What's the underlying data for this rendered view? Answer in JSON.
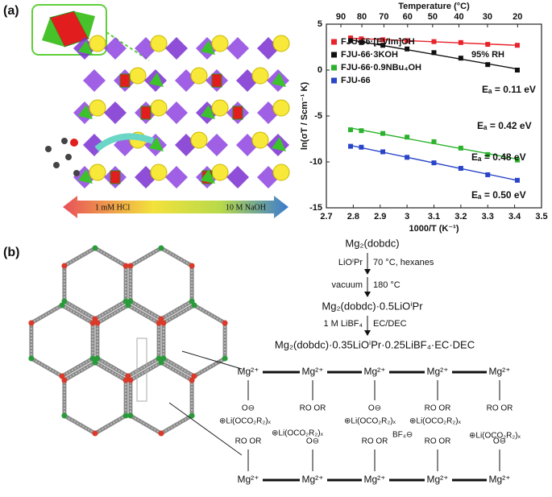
{
  "panel_labels": [
    "(a)",
    "(b)"
  ],
  "panel_a": {
    "ph_left": "1 mM HCl",
    "ph_right": "10 M NaOH"
  },
  "chart_data": {
    "type": "scatter",
    "x_label": "1000/T (K⁻¹)",
    "y_label": "ln(σT / Scm⁻¹ K)",
    "x2_label": "Temperature (°C)",
    "annotation": "95% RH",
    "x": [
      2.79,
      2.83,
      2.91,
      3.0,
      3.1,
      3.2,
      3.3,
      3.41
    ],
    "series": [
      {
        "name": "FJU-66·[EVIm]OH",
        "color": "#e8232a",
        "values": [
          3.5,
          3.4,
          3.3,
          3.2,
          3.1,
          3.0,
          2.8,
          2.7
        ],
        "label": "Eₐ = 0.11 eV"
      },
      {
        "name": "FJU-66·3KOH",
        "color": "#111111",
        "values": [
          3.2,
          3.0,
          2.7,
          2.3,
          1.9,
          1.3,
          0.6,
          0.0
        ],
        "label": "Eₐ = 0.42 eV"
      },
      {
        "name": "FJU-66·0.9NBu₄OH",
        "color": "#2db22d",
        "values": [
          -6.5,
          -6.6,
          -6.9,
          -7.3,
          -7.8,
          -8.5,
          -9.2,
          -9.8
        ],
        "label": "Eₐ = 0.48 eV"
      },
      {
        "name": "FJU-66",
        "color": "#2a45c8",
        "values": [
          -8.3,
          -8.4,
          -8.9,
          -9.5,
          -10.1,
          -10.7,
          -11.4,
          -12.0
        ],
        "label": "Eₐ = 0.50 eV"
      }
    ],
    "xlim": [
      2.7,
      3.5
    ],
    "xticks": [
      2.7,
      2.8,
      2.9,
      3,
      3.1,
      3.2,
      3.3,
      3.4,
      3.5
    ],
    "ylim": [
      -15,
      5
    ],
    "yticks": [
      -15,
      -10,
      -5,
      0,
      5
    ],
    "x2ticks": [
      {
        "value": 2.754,
        "label": "90"
      },
      {
        "value": 2.832,
        "label": "80"
      },
      {
        "value": 2.914,
        "label": "70"
      },
      {
        "value": 3.002,
        "label": "60"
      },
      {
        "value": 3.095,
        "label": "50"
      },
      {
        "value": 3.193,
        "label": "40"
      },
      {
        "value": 3.299,
        "label": "30"
      },
      {
        "value": 3.411,
        "label": "20"
      }
    ],
    "fit_lines": true,
    "legend": "upper-left"
  },
  "scheme": {
    "start": "Mg₂(dobdc)",
    "step1_reagent": "LiOⁱPr",
    "step1_conditions": "70 °C, hexanes",
    "step2_reagent": "vacuum",
    "step2_conditions": "180 °C",
    "intermediate": "Mg₂(dobdc)·0.5LiOⁱPr",
    "step3_reagent": "1 M LiBF₄",
    "step3_conditions": "EC/DEC",
    "product": "Mg₂(dobdc)·0.35LiOⁱPr·0.25LiBF₄·EC·DEC"
  },
  "structure": {
    "top_metals": [
      "Mg²⁺",
      "Mg²⁺",
      "Mg²⁺",
      "Mg²⁺",
      "Mg²⁺"
    ],
    "bottom_metals": [
      "Mg²⁺",
      "Mg²⁺",
      "Mg²⁺",
      "Mg²⁺",
      "Mg²⁺"
    ],
    "top_ligands": [
      "O⊖",
      "RO   OR",
      "O⊖",
      "RO   OR",
      "RO   OR"
    ],
    "bottom_ligands": [
      "RO   OR",
      "O⊖",
      "RO   OR",
      "RO   OR",
      "O⊖"
    ],
    "counter_ions": [
      "⊕Li(OCO₂R₂)ₓ",
      "⊕Li(OCO₂R₂)ₓ",
      "⊕Li(OCO₂R₂)ₓ",
      "⊕Li(OCO₂R₂)ₓ",
      "BF₄⊖",
      "⊕Li(OCO₂R₂)ₓ"
    ]
  }
}
